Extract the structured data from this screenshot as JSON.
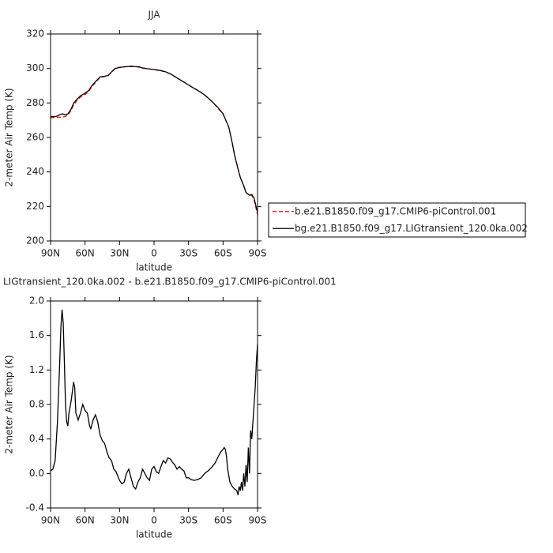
{
  "chart_data": [
    {
      "type": "line",
      "title": "JJA",
      "x_label": "latitude",
      "y_label": "2-meter Air Temp (K)",
      "xlim": [
        90,
        -90
      ],
      "ylim": [
        200,
        320
      ],
      "xticks": [
        {
          "value": 90,
          "label": "90N"
        },
        {
          "value": 60,
          "label": "60N"
        },
        {
          "value": 30,
          "label": "30N"
        },
        0,
        {
          "value": -30,
          "label": "30S"
        },
        {
          "value": -60,
          "label": "60S"
        },
        {
          "value": -90,
          "label": "90S"
        }
      ],
      "yticks": [
        200,
        220,
        240,
        260,
        280,
        300,
        320
      ],
      "legend": "right",
      "x": [
        90,
        85,
        80,
        77,
        75,
        72,
        70,
        67,
        64,
        60,
        57,
        54,
        50,
        47,
        43,
        40,
        37,
        34,
        30,
        25,
        20,
        17,
        13,
        10,
        5,
        0,
        -5,
        -10,
        -15,
        -20,
        -25,
        -30,
        -35,
        -40,
        -45,
        -50,
        -55,
        -60,
        -65,
        -68,
        -70,
        -73,
        -75,
        -78,
        -80,
        -83,
        -85,
        -87,
        -89,
        -90
      ],
      "series": [
        {
          "name": "b.e21.B1850.f09_g17.CMIP6-piControl.001",
          "color": "#ff0000",
          "line_style": "dashed",
          "values": [
            271.5,
            271.6,
            271.8,
            272.2,
            273,
            275.8,
            278.8,
            281.5,
            283.4,
            285,
            286.5,
            289.5,
            292.6,
            294.8,
            295.3,
            295.8,
            297.9,
            299.9,
            300.7,
            301,
            301.3,
            301.2,
            300.8,
            300.2,
            299.8,
            299.3,
            298.8,
            298,
            296.5,
            294.5,
            292.5,
            290.5,
            288.5,
            286.5,
            284,
            281,
            277.5,
            273.5,
            266,
            257,
            250,
            242,
            237,
            232,
            228,
            226.5,
            226.5,
            224,
            218,
            215
          ]
        },
        {
          "name": "bg.e21.B1850.f09_g17.LIGtransient_120.0ka.002",
          "color": "#000000",
          "line_style": "solid",
          "values": [
            272,
            272.2,
            273.7,
            273.2,
            273.6,
            276.6,
            279.8,
            282.2,
            284.1,
            285.7,
            287.1,
            290.1,
            293,
            295.1,
            295.5,
            296,
            298,
            299.9,
            300.6,
            301,
            301.2,
            301.1,
            300.9,
            300.3,
            299.8,
            299.4,
            298.9,
            298.1,
            296.6,
            294.5,
            292.5,
            290.4,
            288.4,
            286.5,
            284.1,
            281.1,
            277.8,
            273.8,
            266,
            256.8,
            249.8,
            241.8,
            236.8,
            232,
            228.1,
            226.5,
            226.9,
            224.8,
            219.3,
            216.5
          ]
        }
      ]
    },
    {
      "type": "line",
      "title": "LIGtransient_120.0ka.002 - b.e21.B1850.f09_g17.CMIP6-piControl.001",
      "x_label": "latitude",
      "y_label": "2-meter Air Temp (K)",
      "xlim": [
        90,
        -90
      ],
      "ylim": [
        -0.4,
        2.0
      ],
      "xticks": [
        {
          "value": 90,
          "label": "90N"
        },
        {
          "value": 60,
          "label": "60N"
        },
        {
          "value": 30,
          "label": "30N"
        },
        0,
        {
          "value": -30,
          "label": "30S"
        },
        {
          "value": -60,
          "label": "60S"
        },
        {
          "value": -90,
          "label": "90S"
        }
      ],
      "yticks": [
        {
          "value": -0.4,
          "label": "-0.4"
        },
        {
          "value": 0,
          "label": "0.0"
        },
        {
          "value": 0.4,
          "label": "0.4"
        },
        {
          "value": 0.8,
          "label": "0.8"
        },
        {
          "value": 1.2,
          "label": "1.2"
        },
        {
          "value": 1.6,
          "label": "1.6"
        },
        {
          "value": 2.0,
          "label": "2.0"
        }
      ],
      "x": [
        90,
        88,
        86,
        84,
        82,
        81,
        80,
        79,
        78,
        77,
        76,
        75,
        74,
        72,
        70,
        69,
        68,
        66,
        64,
        62,
        60,
        58,
        56,
        55,
        53,
        51,
        49,
        47,
        45,
        43,
        41,
        39,
        37,
        35,
        33,
        30,
        28,
        26,
        24,
        22,
        20,
        18,
        16,
        14,
        12,
        10,
        8,
        6,
        4,
        2,
        0,
        -2,
        -4,
        -6,
        -8,
        -10,
        -12,
        -14,
        -16,
        -18,
        -20,
        -22,
        -24,
        -26,
        -28,
        -30,
        -32,
        -35,
        -38,
        -41,
        -44,
        -47,
        -50,
        -53,
        -56,
        -58,
        -60,
        -61,
        -62,
        -63,
        -64,
        -66,
        -68,
        -70,
        -72,
        -73,
        -74,
        -75,
        -76,
        -77,
        -78,
        -79,
        -80,
        -81,
        -82,
        -83,
        -84,
        -85,
        -86,
        -87,
        -88,
        -89,
        -90
      ],
      "series": [
        {
          "color": "#000000",
          "line_style": "solid",
          "values": [
            0.03,
            0.05,
            0.15,
            0.6,
            1.3,
            1.7,
            1.9,
            1.75,
            1.3,
            0.8,
            0.6,
            0.55,
            0.7,
            0.85,
            1.06,
            1.0,
            0.7,
            0.62,
            0.7,
            0.8,
            0.73,
            0.7,
            0.55,
            0.52,
            0.62,
            0.68,
            0.6,
            0.45,
            0.38,
            0.35,
            0.25,
            0.18,
            0.15,
            0.05,
            0.02,
            -0.08,
            -0.12,
            -0.1,
            0.0,
            0.05,
            -0.05,
            -0.15,
            -0.18,
            -0.1,
            -0.05,
            0.05,
            0.0,
            -0.05,
            -0.08,
            0.05,
            0.08,
            0.02,
            0.0,
            0.08,
            0.15,
            0.12,
            0.18,
            0.17,
            0.13,
            0.1,
            0.05,
            0.08,
            0.05,
            0.03,
            -0.05,
            -0.05,
            -0.07,
            -0.08,
            -0.07,
            -0.05,
            0.0,
            0.03,
            0.07,
            0.12,
            0.2,
            0.25,
            0.28,
            0.3,
            0.28,
            0.2,
            0.05,
            -0.1,
            -0.15,
            -0.18,
            -0.2,
            -0.25,
            -0.15,
            -0.2,
            -0.1,
            -0.2,
            0.0,
            -0.15,
            0.1,
            -0.1,
            0.3,
            0.0,
            0.5,
            0.4,
            0.6,
            0.8,
            1.0,
            1.3,
            1.5
          ]
        }
      ]
    }
  ]
}
